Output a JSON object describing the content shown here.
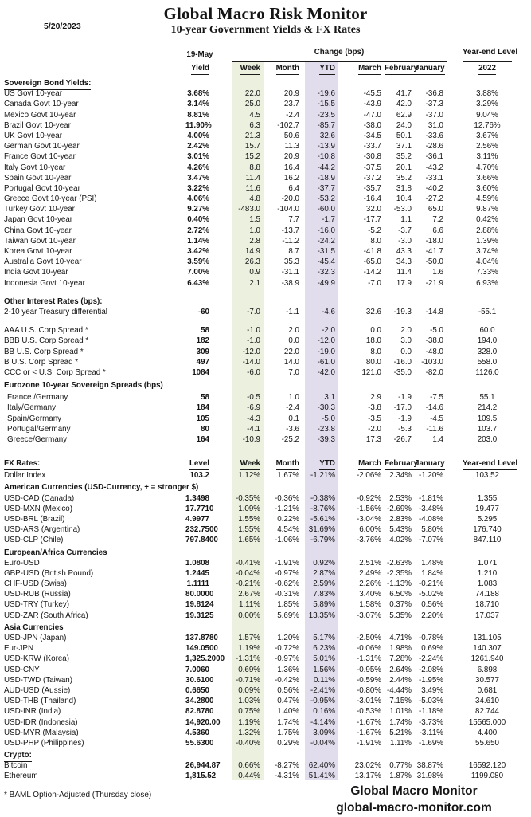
{
  "page": {
    "date": "5/20/2023",
    "title": "Global Macro Risk Monitor",
    "subtitle": "10-year Government Yields & FX Rates",
    "footnote": "* BAML Option-Adjusted (Thursday close)",
    "footer_title": "Global Macro Monitor",
    "footer_url": "global-macro-monitor.com"
  },
  "colors": {
    "week_band": "#EBF1DE",
    "ytd_band": "#E2DDED"
  },
  "table": {
    "group_headers": {
      "date_col": "19-May",
      "change": "Change (bps)",
      "year_end": "Year-end Level"
    },
    "bond_columns": [
      "Yield",
      "Week",
      "Month",
      "YTD",
      "March",
      "February",
      "January",
      "2022"
    ],
    "fx_columns": [
      "Level",
      "Week",
      "Month",
      "YTD",
      "March",
      "February",
      "January",
      "Year-end Level"
    ],
    "sections": [
      {
        "heading": "Sovereign Bond Yields:",
        "heading_underline": true,
        "rows": [
          {
            "label": "US Govt 10-year",
            "values": [
              "3.68%",
              "22.0",
              "20.9",
              "-19.6",
              "-45.5",
              "41.7",
              "-36.8",
              "3.88%"
            ]
          },
          {
            "label": "Canada Govt 10-year",
            "values": [
              "3.14%",
              "25.0",
              "23.7",
              "-15.5",
              "-43.9",
              "42.0",
              "-37.3",
              "3.29%"
            ]
          },
          {
            "label": "Mexico Govt 10-year",
            "values": [
              "8.81%",
              "4.5",
              "-2.4",
              "-23.5",
              "-47.0",
              "62.9",
              "-37.0",
              "9.04%"
            ]
          },
          {
            "label": "Brazil Govt 10-year",
            "values": [
              "11.90%",
              "6.3",
              "-102.7",
              "-85.7",
              "-38.0",
              "24.0",
              "31.0",
              "12.76%"
            ]
          },
          {
            "label": "UK Govt 10-year",
            "values": [
              "4.00%",
              "21.3",
              "50.6",
              "32.6",
              "-34.5",
              "50.1",
              "-33.6",
              "3.67%"
            ]
          },
          {
            "label": "German Govt 10-year",
            "values": [
              "2.42%",
              "15.7",
              "11.3",
              "-13.9",
              "-33.7",
              "37.1",
              "-28.6",
              "2.56%"
            ]
          },
          {
            "label": "France Govt 10-year",
            "values": [
              "3.01%",
              "15.2",
              "20.9",
              "-10.8",
              "-30.8",
              "35.2",
              "-36.1",
              "3.11%"
            ]
          },
          {
            "label": "Italy Govt 10-year",
            "values": [
              "4.26%",
              "8.8",
              "16.4",
              "-44.2",
              "-37.5",
              "20.1",
              "-43.2",
              "4.70%"
            ]
          },
          {
            "label": "Spain Govt 10-year",
            "values": [
              "3.47%",
              "11.4",
              "16.2",
              "-18.9",
              "-37.2",
              "35.2",
              "-33.1",
              "3.66%"
            ]
          },
          {
            "label": "Portugal Govt 10-year",
            "values": [
              "3.22%",
              "11.6",
              "6.4",
              "-37.7",
              "-35.7",
              "31.8",
              "-40.2",
              "3.60%"
            ]
          },
          {
            "label": "Greece Govt 10-year (PSI)",
            "values": [
              "4.06%",
              "4.8",
              "-20.0",
              "-53.2",
              "-16.4",
              "10.4",
              "-27.2",
              "4.59%"
            ]
          },
          {
            "label": "Turkey Govt 10-year",
            "values": [
              "9.27%",
              "-483.0",
              "-104.0",
              "-60.0",
              "32.0",
              "-53.0",
              "65.0",
              "9.87%"
            ]
          },
          {
            "label": "Japan Govt 10-year",
            "values": [
              "0.40%",
              "1.5",
              "7.7",
              "-1.7",
              "-17.7",
              "1.1",
              "7.2",
              "0.42%"
            ]
          },
          {
            "label": "China Govt 10-year",
            "values": [
              "2.72%",
              "1.0",
              "-13.7",
              "-16.0",
              "-5.2",
              "-3.7",
              "6.6",
              "2.88%"
            ]
          },
          {
            "label": "Taiwan Govt 10-year",
            "values": [
              "1.14%",
              "2.8",
              "-11.2",
              "-24.2",
              "8.0",
              "-3.0",
              "-18.0",
              "1.39%"
            ]
          },
          {
            "label": "Korea Govt 10-year",
            "values": [
              "3.42%",
              "14.9",
              "8.7",
              "-31.5",
              "-41.8",
              "43.3",
              "-41.7",
              "3.74%"
            ]
          },
          {
            "label": "Australia Govt 10-year",
            "values": [
              "3.59%",
              "26.3",
              "35.3",
              "-45.4",
              "-65.0",
              "34.3",
              "-50.0",
              "4.04%"
            ]
          },
          {
            "label": "India Govt 10-year",
            "values": [
              "7.00%",
              "0.9",
              "-31.1",
              "-32.3",
              "-14.2",
              "11.4",
              "1.6",
              "7.33%"
            ]
          },
          {
            "label": "Indonesia Govt 10-year",
            "values": [
              "6.43%",
              "2.1",
              "-38.9",
              "-49.9",
              "-7.0",
              "17.9",
              "-21.9",
              "6.93%"
            ]
          }
        ]
      },
      {
        "heading": "Other Interest Rates  (bps):",
        "rows": [
          {
            "label": "2-10 year Treasury differential",
            "values": [
              "-60",
              "-7.0",
              "-1.1",
              "-4.6",
              "32.6",
              "-19.3",
              "-14.8",
              "-55.1"
            ]
          }
        ]
      },
      {
        "rows": [
          {
            "label": "AAA U.S. Corp Spread *",
            "values": [
              "58",
              "-1.0",
              "2.0",
              "-2.0",
              "0.0",
              "2.0",
              "-5.0",
              "60.0"
            ]
          },
          {
            "label": "BBB U.S. Corp Spread *",
            "values": [
              "182",
              "-1.0",
              "0.0",
              "-12.0",
              "18.0",
              "3.0",
              "-38.0",
              "194.0"
            ]
          },
          {
            "label": "BB U.S. Corp Spread *",
            "values": [
              "309",
              "-12.0",
              "22.0",
              "-19.0",
              "8.0",
              "0.0",
              "-48.0",
              "328.0"
            ]
          },
          {
            "label": "B U.S. Corp Spread *",
            "values": [
              "497",
              "-14.0",
              "14.0",
              "-61.0",
              "80.0",
              "-16.0",
              "-103.0",
              "558.0"
            ]
          },
          {
            "label": "CCC or < U.S. Corp Spread *",
            "values": [
              "1084",
              "-6.0",
              "7.0",
              "-42.0",
              "121.0",
              "-35.0",
              "-82.0",
              "1126.0"
            ]
          }
        ]
      },
      {
        "heading": "Eurozone 10-year Sovereign Spreads (bps)",
        "indent_rows": true,
        "rows": [
          {
            "label": "France /Germany",
            "values": [
              "58",
              "-0.5",
              "1.0",
              "3.1",
              "2.9",
              "-1.9",
              "-7.5",
              "55.1"
            ]
          },
          {
            "label": "Italy/Germany",
            "values": [
              "184",
              "-6.9",
              "-2.4",
              "-30.3",
              "-3.8",
              "-17.0",
              "-14.6",
              "214.2"
            ]
          },
          {
            "label": "Spain/Germany",
            "values": [
              "105",
              "-4.3",
              "0.1",
              "-5.0",
              "-3.5",
              "-1.9",
              "-4.5",
              "109.5"
            ]
          },
          {
            "label": "Portugal/Germany",
            "values": [
              "80",
              "-4.1",
              "-3.6",
              "-23.8",
              "-2.0",
              "-5.3",
              "-11.6",
              "103.7"
            ]
          },
          {
            "label": "Greece/Germany",
            "values": [
              "164",
              "-10.9",
              "-25.2",
              "-39.3",
              "17.3",
              "-26.7",
              "1.4",
              "203.0"
            ]
          }
        ]
      },
      {
        "fx_header": true,
        "heading": "FX Rates:",
        "heading_underline": true,
        "rows": [
          {
            "label": "Dollar Index",
            "values": [
              "103.2",
              "1.12%",
              "1.67%",
              "-1.21%",
              "-2.06%",
              "2.34%",
              "-1.20%",
              "103.52"
            ]
          }
        ]
      },
      {
        "heading": "American Currencies (USD-Currency, + = stronger $)",
        "rows": [
          {
            "label": "USD-CAD (Canada)",
            "values": [
              "1.3498",
              "-0.35%",
              "-0.36%",
              "-0.38%",
              "-0.92%",
              "2.53%",
              "-1.81%",
              "1.355"
            ]
          },
          {
            "label": "USD-MXN (Mexico)",
            "values": [
              "17.7710",
              "1.09%",
              "-1.21%",
              "-8.76%",
              "-1.56%",
              "-2.69%",
              "-3.48%",
              "19.477"
            ]
          },
          {
            "label": "USD-BRL (Brazil)",
            "values": [
              "4.9977",
              "1.55%",
              "0.22%",
              "-5.61%",
              "-3.04%",
              "2.83%",
              "-4.08%",
              "5.295"
            ]
          },
          {
            "label": "USD-ARS (Argentina)",
            "values": [
              "232.7500",
              "1.55%",
              "4.54%",
              "31.69%",
              "6.00%",
              "5.43%",
              "5.80%",
              "176.740"
            ]
          },
          {
            "label": "USD-CLP (Chile)",
            "values": [
              "797.8400",
              "1.65%",
              "-1.06%",
              "-6.79%",
              "-3.76%",
              "4.02%",
              "-7.07%",
              "847.110"
            ]
          }
        ]
      },
      {
        "heading": "European/Africa Currencies",
        "rows": [
          {
            "label": "Euro-USD",
            "values": [
              "1.0808",
              "-0.41%",
              "-1.91%",
              "0.92%",
              "2.51%",
              "-2.63%",
              "1.48%",
              "1.071"
            ]
          },
          {
            "label": "GBP-USD (British Pound)",
            "values": [
              "1.2445",
              "-0.04%",
              "-0.97%",
              "2.87%",
              "2.49%",
              "-2.35%",
              "1.84%",
              "1.210"
            ]
          },
          {
            "label": "CHF-USD (Swiss)",
            "values": [
              "1.1111",
              "-0.21%",
              "-0.62%",
              "2.59%",
              "2.26%",
              "-1.13%",
              "-0.21%",
              "1.083"
            ]
          },
          {
            "label": "USD-RUB (Russia)",
            "values": [
              "80.0000",
              "2.67%",
              "-0.31%",
              "7.83%",
              "3.40%",
              "6.50%",
              "-5.02%",
              "74.188"
            ]
          },
          {
            "label": "USD-TRY (Turkey)",
            "values": [
              "19.8124",
              "1.11%",
              "1.85%",
              "5.89%",
              "1.58%",
              "0.37%",
              "0.56%",
              "18.710"
            ]
          },
          {
            "label": "USD-ZAR (South Africa)",
            "values": [
              "19.3125",
              "0.00%",
              "5.69%",
              "13.35%",
              "-3.07%",
              "5.35%",
              "2.20%",
              "17.037"
            ]
          }
        ]
      },
      {
        "heading": "Asia Currencies",
        "rows": [
          {
            "label": "USD-JPN (Japan)",
            "values": [
              "137.8780",
              "1.57%",
              "1.20%",
              "5.17%",
              "-2.50%",
              "4.71%",
              "-0.78%",
              "131.105"
            ]
          },
          {
            "label": "Eur-JPN",
            "values": [
              "149.0500",
              "1.19%",
              "-0.72%",
              "6.23%",
              "-0.06%",
              "1.98%",
              "0.69%",
              "140.307"
            ]
          },
          {
            "label": "USD-KRW (Korea)",
            "values": [
              "1,325.2000",
              "-1.31%",
              "-0.97%",
              "5.01%",
              "-1.31%",
              "7.28%",
              "-2.24%",
              "1261.940"
            ]
          },
          {
            "label": "USD-CNY",
            "values": [
              "7.0060",
              "0.69%",
              "1.36%",
              "1.56%",
              "-0.95%",
              "2.64%",
              "-2.08%",
              "6.898"
            ]
          },
          {
            "label": "USD-TWD (Taiwan)",
            "values": [
              "30.6100",
              "-0.71%",
              "-0.42%",
              "0.11%",
              "-0.59%",
              "2.44%",
              "-1.95%",
              "30.577"
            ]
          },
          {
            "label": "AUD-USD (Aussie)",
            "values": [
              "0.6650",
              "0.09%",
              "0.56%",
              "-2.41%",
              "-0.80%",
              "-4.44%",
              "3.49%",
              "0.681"
            ]
          },
          {
            "label": "USD-THB (Thailand)",
            "values": [
              "34.2800",
              "1.03%",
              "0.47%",
              "-0.95%",
              "-3.01%",
              "7.15%",
              "-5.03%",
              "34.610"
            ]
          },
          {
            "label": "USD-INR (India)",
            "values": [
              "82.8780",
              "0.75%",
              "1.40%",
              "0.16%",
              "-0.53%",
              "1.01%",
              "-1.18%",
              "82.744"
            ]
          },
          {
            "label": "USD-IDR (Indonesia)",
            "values": [
              "14,920.00",
              "1.19%",
              "1.74%",
              "-4.14%",
              "-1.67%",
              "1.74%",
              "-3.73%",
              "15565.000"
            ]
          },
          {
            "label": "USD-MYR (Malaysia)",
            "values": [
              "4.5360",
              "1.32%",
              "1.75%",
              "3.09%",
              "-1.67%",
              "5.21%",
              "-3.11%",
              "4.400"
            ]
          },
          {
            "label": "USD-PHP (Philippines)",
            "values": [
              "55.6300",
              "-0.40%",
              "0.29%",
              "-0.04%",
              "-1.91%",
              "1.11%",
              "-1.69%",
              "55.650"
            ]
          }
        ]
      },
      {
        "heading": "Crypto:",
        "heading_underline": true,
        "rows": [
          {
            "label": "Bitcoin",
            "values": [
              "26,944.87",
              "0.66%",
              "-8.27%",
              "62.40%",
              "23.02%",
              "0.77%",
              "38.87%",
              "16592.120"
            ]
          },
          {
            "label": "Ethereum",
            "values": [
              "1,815.52",
              "0.44%",
              "-4.31%",
              "51.41%",
              "13.17%",
              "1.87%",
              "31.98%",
              "1199.080"
            ]
          }
        ]
      }
    ]
  }
}
